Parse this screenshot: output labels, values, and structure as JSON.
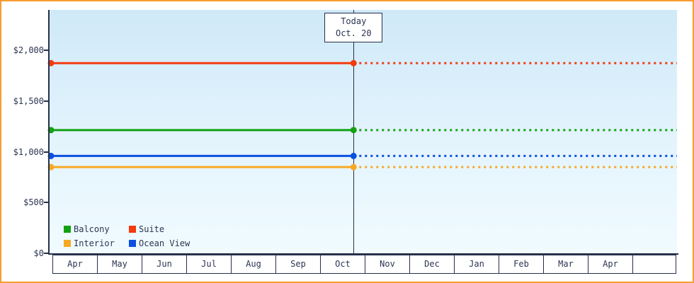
{
  "chart_data": {
    "type": "line",
    "x_categories": [
      "Apr",
      "May",
      "Jun",
      "Jul",
      "Aug",
      "Sep",
      "Oct",
      "Nov",
      "Dec",
      "Jan",
      "Feb",
      "Mar",
      "Apr"
    ],
    "y_ticks": [
      {
        "label": "$0",
        "value": 0
      },
      {
        "label": "$500",
        "value": 500
      },
      {
        "label": "$1,000",
        "value": 1000
      },
      {
        "label": "$1,500",
        "value": 1500
      },
      {
        "label": "$2,000",
        "value": 2000
      }
    ],
    "ylim": [
      0,
      2400
    ],
    "today": {
      "line1": "Today",
      "line2": "Oct. 20",
      "month_index": 6,
      "day_fraction": 0.645
    },
    "series": [
      {
        "name": "Suite",
        "color": "#f33b0f",
        "value": 1875
      },
      {
        "name": "Balcony",
        "color": "#12a112",
        "value": 1215
      },
      {
        "name": "Ocean View",
        "color": "#0b51e0",
        "value": 960
      },
      {
        "name": "Interior",
        "color": "#f7a823",
        "value": 850
      }
    ],
    "legend_order": [
      "Balcony",
      "Suite",
      "Interior",
      "Ocean View"
    ],
    "style": {
      "past_line": "solid",
      "future_line": "dashed",
      "plot_bg_top": "#cfe9f8",
      "plot_bg_bottom": "#f0fbff",
      "axis_color": "#25304a",
      "frame_border_color": "#f89b31"
    }
  }
}
